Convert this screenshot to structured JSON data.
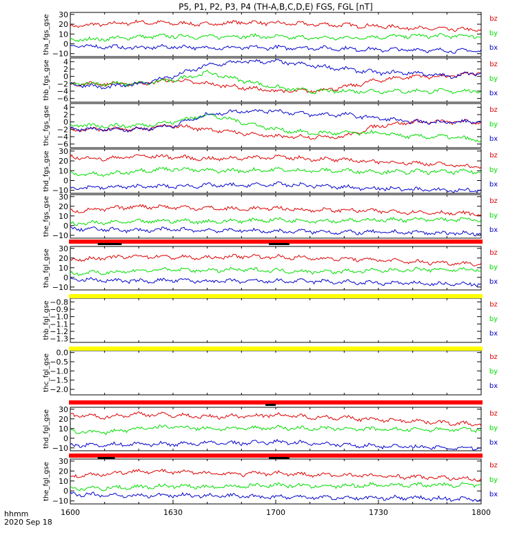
{
  "title": "P5, P1, P2, P3, P4 (TH-A,B,C,D,E) FGS, FGL [nT]",
  "time_axis": {
    "label_line1": "hhmm",
    "label_line2": "2020 Sep 18",
    "ticks": [
      "1600",
      "1630",
      "1700",
      "1730",
      "1800"
    ],
    "range_minutes": [
      0,
      120
    ]
  },
  "legend_entries": [
    "bz",
    "by",
    "bx"
  ],
  "colors": {
    "bz": "#dd0000",
    "by": "#00dd00",
    "bx": "#0000cc",
    "bar_red": "#ff0000",
    "bar_yellow": "#ffff00",
    "bar_black": "#000000"
  },
  "chart_data": [
    {
      "type": "line",
      "ylabel": "tha_fgs_gse",
      "ylim": [
        -13,
        32
      ],
      "yticks": [
        "30",
        "20",
        "10",
        "0",
        "−10"
      ],
      "ytick_values": [
        30,
        20,
        10,
        0,
        -10
      ],
      "x": [
        0,
        10,
        20,
        30,
        40,
        50,
        60,
        70,
        80,
        90,
        100,
        110,
        120
      ],
      "series": [
        {
          "name": "bz",
          "values": [
            18,
            20,
            22,
            21,
            20,
            22,
            21,
            20,
            19,
            18,
            16,
            15,
            14
          ]
        },
        {
          "name": "by",
          "values": [
            4,
            5,
            7,
            8,
            7,
            8,
            7,
            6,
            6,
            7,
            8,
            8,
            8
          ]
        },
        {
          "name": "bx",
          "values": [
            -2,
            -3,
            -4,
            -3,
            -4,
            -4,
            -4,
            -4,
            -5,
            -6,
            -6,
            -7,
            -7
          ]
        }
      ]
    },
    {
      "type": "line",
      "ylabel": "thb_fgs_gse",
      "ylim": [
        -7,
        5
      ],
      "yticks": [
        "4",
        "2",
        "0",
        "−2",
        "−4",
        "−6"
      ],
      "ytick_values": [
        4,
        2,
        0,
        -2,
        -4,
        -6
      ],
      "x": [
        0,
        10,
        20,
        30,
        40,
        50,
        60,
        70,
        80,
        90,
        100,
        110,
        120
      ],
      "series": [
        {
          "name": "bz",
          "values": [
            -2,
            -2,
            -2,
            -1,
            -2,
            -3,
            -4,
            -4,
            -3,
            -1,
            0,
            0,
            1
          ]
        },
        {
          "name": "by",
          "values": [
            -2,
            -2,
            -2,
            -1,
            1,
            -1,
            -3,
            -4,
            -4,
            -4,
            -4,
            -4,
            -4
          ]
        },
        {
          "name": "bx",
          "values": [
            -2,
            -3,
            -2,
            0,
            3,
            4,
            4,
            3,
            2,
            1,
            1,
            0,
            1
          ]
        }
      ]
    },
    {
      "type": "line",
      "ylabel": "thc_fgs_gse",
      "ylim": [
        -7,
        5
      ],
      "yticks": [
        "4",
        "2",
        "0",
        "−2",
        "−4",
        "−6"
      ],
      "ytick_values": [
        4,
        2,
        0,
        -2,
        -4,
        -6
      ],
      "x": [
        0,
        10,
        20,
        30,
        40,
        50,
        60,
        70,
        80,
        90,
        100,
        110,
        120
      ],
      "series": [
        {
          "name": "bz",
          "values": [
            -2,
            -2,
            -2,
            -1,
            -2,
            -3,
            -4,
            -4,
            -4,
            -1,
            0,
            0,
            0
          ]
        },
        {
          "name": "by",
          "values": [
            -1,
            -1,
            -1,
            0,
            2,
            0,
            -2,
            -3,
            -3,
            -3,
            -4,
            -4,
            -5
          ]
        },
        {
          "name": "bx",
          "values": [
            -2,
            -2,
            -2,
            -1,
            2,
            3,
            3,
            2,
            2,
            1,
            0,
            0,
            0
          ]
        }
      ]
    },
    {
      "type": "line",
      "ylabel": "thd_fgs_gse",
      "ylim": [
        -13,
        32
      ],
      "yticks": [
        "30",
        "20",
        "10",
        "0",
        "−10"
      ],
      "ytick_values": [
        30,
        20,
        10,
        0,
        -10
      ],
      "x": [
        0,
        10,
        20,
        30,
        40,
        50,
        60,
        70,
        80,
        90,
        100,
        110,
        120
      ],
      "series": [
        {
          "name": "bz",
          "values": [
            24,
            22,
            25,
            24,
            22,
            23,
            24,
            22,
            21,
            19,
            18,
            16,
            14
          ]
        },
        {
          "name": "by",
          "values": [
            7,
            6,
            10,
            12,
            10,
            10,
            11,
            10,
            10,
            9,
            9,
            9,
            9
          ]
        },
        {
          "name": "bx",
          "values": [
            -7,
            -7,
            -6,
            -6,
            -5,
            -5,
            -4,
            -5,
            -7,
            -8,
            -9,
            -10,
            -10
          ]
        }
      ]
    },
    {
      "type": "line",
      "ylabel": "the_fgs_gse",
      "ylim": [
        -13,
        32
      ],
      "yticks": [
        "30",
        "20",
        "10",
        "0",
        "−10"
      ],
      "ytick_values": [
        30,
        20,
        10,
        0,
        -10
      ],
      "x": [
        0,
        10,
        20,
        30,
        40,
        50,
        60,
        70,
        80,
        90,
        100,
        110,
        120
      ],
      "series": [
        {
          "name": "bz",
          "values": [
            15,
            17,
            20,
            19,
            18,
            17,
            18,
            16,
            16,
            15,
            14,
            13,
            12
          ]
        },
        {
          "name": "by",
          "values": [
            2,
            3,
            4,
            5,
            4,
            5,
            6,
            5,
            5,
            6,
            6,
            6,
            6
          ]
        },
        {
          "name": "bx",
          "values": [
            -3,
            -4,
            -5,
            -4,
            -5,
            -5,
            -6,
            -6,
            -7,
            -7,
            -7,
            -8,
            -8
          ]
        }
      ]
    },
    {
      "type": "line",
      "ylabel": "tha_fgl_gse",
      "ylim": [
        -13,
        32
      ],
      "yticks": [
        "30",
        "20",
        "10",
        "0",
        "−10"
      ],
      "ytick_values": [
        30,
        20,
        10,
        0,
        -10
      ],
      "x": [
        0,
        10,
        20,
        30,
        40,
        50,
        60,
        70,
        80,
        90,
        100,
        110,
        120
      ],
      "series": [
        {
          "name": "bz",
          "values": [
            18,
            20,
            22,
            21,
            20,
            22,
            21,
            20,
            19,
            18,
            16,
            15,
            14
          ]
        },
        {
          "name": "by",
          "values": [
            4,
            5,
            7,
            8,
            7,
            8,
            7,
            6,
            6,
            7,
            8,
            8,
            8
          ]
        },
        {
          "name": "bx",
          "values": [
            -2,
            -3,
            -4,
            -3,
            -4,
            -4,
            -4,
            -4,
            -5,
            -6,
            -6,
            -7,
            -7
          ]
        }
      ]
    },
    {
      "type": "line",
      "ylabel": "thb_fgl_gse",
      "ylim": [
        -1.35,
        -0.75
      ],
      "yticks": [
        "−0.8",
        "−0.9",
        "−1.0",
        "−1.1",
        "−1.2",
        "−1.3"
      ],
      "ytick_values": [
        -0.8,
        -0.9,
        -1.0,
        -1.1,
        -1.2,
        -1.3
      ],
      "x": [],
      "series": []
    },
    {
      "type": "line",
      "ylabel": "thc_fgl_gse",
      "ylim": [
        -2.3,
        0.1
      ],
      "yticks": [
        "0.0",
        "−0.5",
        "−1.0",
        "−1.5",
        "−2.0"
      ],
      "ytick_values": [
        0,
        -0.5,
        -1.0,
        -1.5,
        -2.0
      ],
      "x": [],
      "series": []
    },
    {
      "type": "line",
      "ylabel": "thd_fgl_gse",
      "ylim": [
        -13,
        32
      ],
      "yticks": [
        "30",
        "20",
        "10",
        "0",
        "−10"
      ],
      "ytick_values": [
        30,
        20,
        10,
        0,
        -10
      ],
      "x": [
        0,
        10,
        20,
        30,
        40,
        50,
        60,
        70,
        80,
        90,
        100,
        110,
        120
      ],
      "series": [
        {
          "name": "bz",
          "values": [
            24,
            22,
            25,
            24,
            22,
            23,
            24,
            22,
            21,
            19,
            18,
            16,
            14
          ]
        },
        {
          "name": "by",
          "values": [
            7,
            6,
            10,
            12,
            10,
            10,
            11,
            10,
            10,
            9,
            9,
            9,
            9
          ]
        },
        {
          "name": "bx",
          "values": [
            -7,
            -7,
            -6,
            -6,
            -5,
            -5,
            -4,
            -5,
            -7,
            -8,
            -9,
            -10,
            -10
          ]
        }
      ]
    },
    {
      "type": "line",
      "ylabel": "the_fgl_gse",
      "ylim": [
        -13,
        32
      ],
      "yticks": [
        "30",
        "20",
        "10",
        "0",
        "−10"
      ],
      "ytick_values": [
        30,
        20,
        10,
        0,
        -10
      ],
      "x": [
        0,
        10,
        20,
        30,
        40,
        50,
        60,
        70,
        80,
        90,
        100,
        110,
        120
      ],
      "series": [
        {
          "name": "bz",
          "values": [
            15,
            17,
            20,
            19,
            18,
            17,
            18,
            16,
            16,
            15,
            14,
            13,
            12
          ]
        },
        {
          "name": "by",
          "values": [
            2,
            3,
            4,
            5,
            4,
            5,
            6,
            5,
            5,
            6,
            6,
            6,
            6
          ]
        },
        {
          "name": "bx",
          "values": [
            -3,
            -4,
            -5,
            -4,
            -5,
            -5,
            -6,
            -6,
            -7,
            -7,
            -7,
            -8,
            -8
          ]
        }
      ]
    }
  ],
  "status_bars": [
    {
      "after_panel": 4,
      "color": "bar_red",
      "black_segments": [
        [
          8,
          15
        ],
        [
          58,
          64
        ]
      ]
    },
    {
      "after_panel": 5,
      "color": "bar_yellow",
      "black_segments": []
    },
    {
      "after_panel": 6,
      "color": "bar_yellow",
      "black_segments": []
    },
    {
      "after_panel": 7,
      "color": "bar_red",
      "black_segments": [
        [
          57,
          60
        ]
      ]
    },
    {
      "after_panel": 8,
      "color": "bar_red",
      "black_segments": [
        [
          8,
          13
        ],
        [
          58,
          64
        ]
      ]
    }
  ]
}
